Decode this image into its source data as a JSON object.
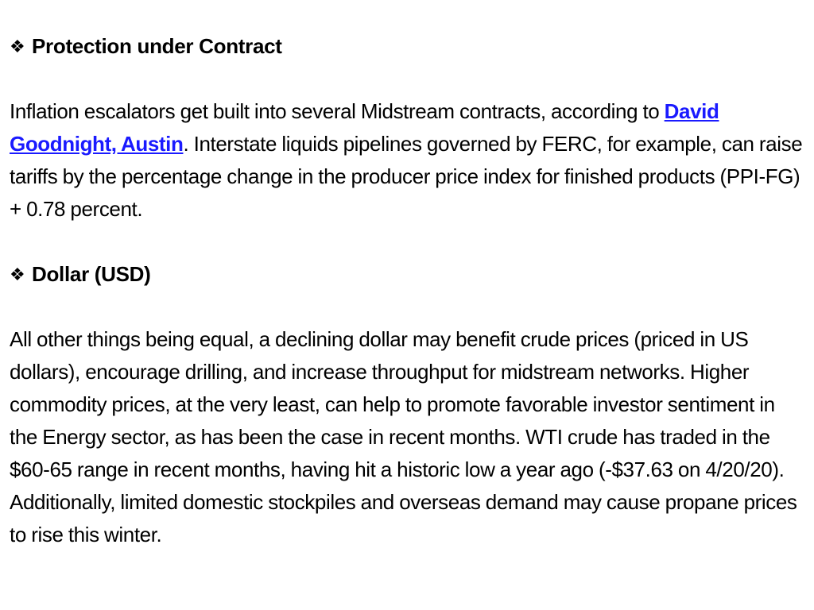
{
  "section1": {
    "bullet_icon": "four-diamond-bullet-icon",
    "bullet_glyph": "❖",
    "title": "Protection under Contract",
    "para_before_link": "Inflation escalators get built into several Midstream contracts, according to ",
    "link_text": "David Goodnight, Austin",
    "para_after_link": ". Interstate liquids pipelines governed by FERC, for example, can raise tariffs by the percentage change in the producer price index for finished products (PPI-FG) + 0.78 percent."
  },
  "section2": {
    "bullet_icon": "four-diamond-bullet-icon",
    "bullet_glyph": "❖",
    "title": "Dollar (USD)",
    "paragraph": "All other things being equal, a declining dollar may benefit crude prices (priced in US dollars), encourage drilling, and increase throughput for midstream networks. Higher commodity prices, at the very least, can help to promote favorable investor sentiment in the Energy sector, as has been the case in recent months. WTI crude has traded in the $60-65 range in recent months, having hit a historic low a year ago (-$37.63 on 4/20/20). Additionally, limited domestic stockpiles and overseas demand may cause propane prices to rise this winter."
  },
  "colors": {
    "text": "#000000",
    "link": "#1a1aff",
    "background": "#ffffff"
  }
}
